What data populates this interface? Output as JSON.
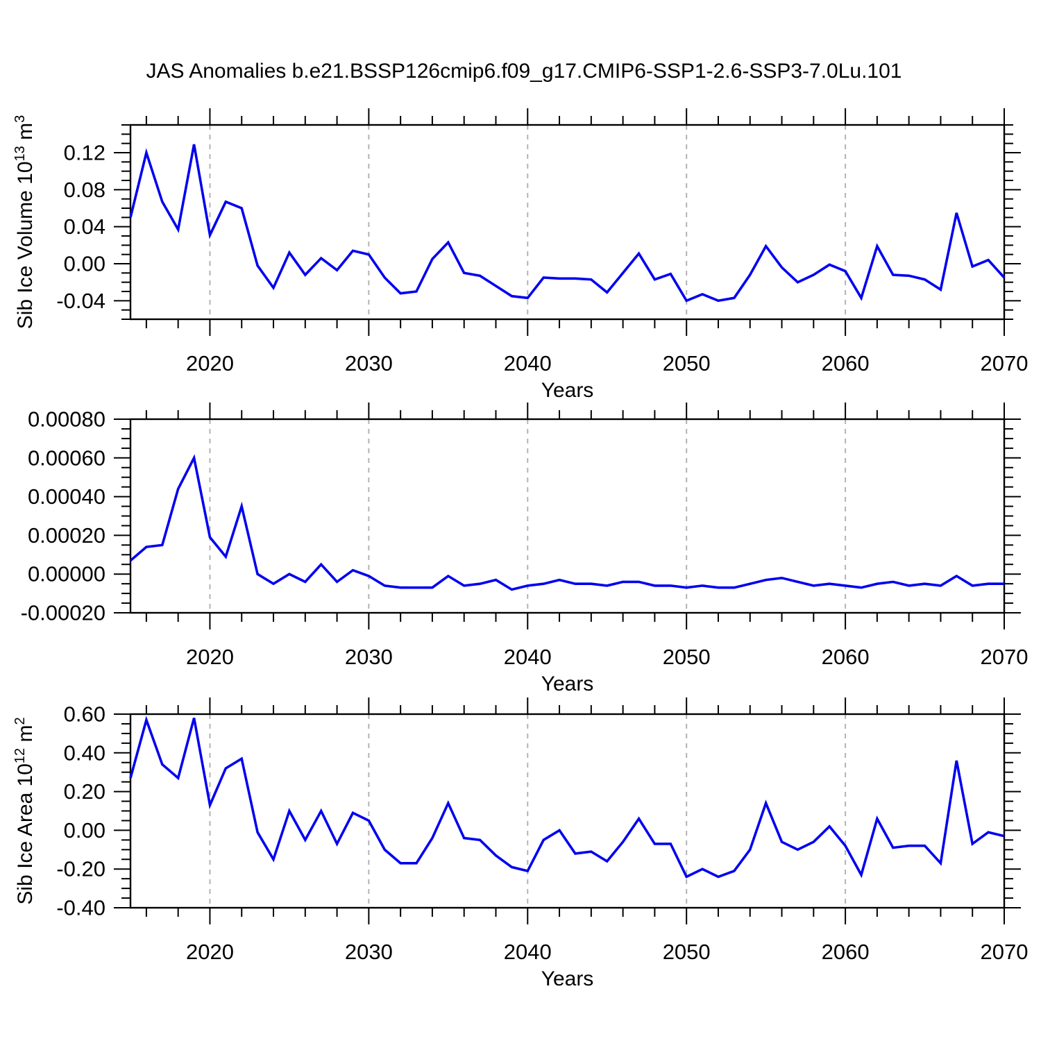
{
  "title": "JAS Anomalies b.e21.BSSP126cmip6.f09_g17.CMIP6-SSP1-2.6-SSP3-7.0Lu.101",
  "style": {
    "line_color": "#0101f0",
    "grid_color": "#b3b3b3",
    "frame_color": "#000000",
    "text_color": "#000000",
    "background": "#ffffff"
  },
  "x_axis": {
    "start": 2015,
    "end": 2070,
    "minor_step": 2,
    "major_step": 10,
    "title": "Years",
    "ticks": [
      {
        "v": 2020,
        "label": "2020"
      },
      {
        "v": 2030,
        "label": "2030"
      },
      {
        "v": 2040,
        "label": "2040"
      },
      {
        "v": 2050,
        "label": "2050"
      },
      {
        "v": 2060,
        "label": "2060"
      },
      {
        "v": 2070,
        "label": "2070"
      }
    ],
    "gridlines": [
      2020,
      2030,
      2040,
      2050,
      2060
    ]
  },
  "years": [
    2015,
    2016,
    2017,
    2018,
    2019,
    2020,
    2021,
    2022,
    2023,
    2024,
    2025,
    2026,
    2027,
    2028,
    2029,
    2030,
    2031,
    2032,
    2033,
    2034,
    2035,
    2036,
    2037,
    2038,
    2039,
    2040,
    2041,
    2042,
    2043,
    2044,
    2045,
    2046,
    2047,
    2048,
    2049,
    2050,
    2051,
    2052,
    2053,
    2054,
    2055,
    2056,
    2057,
    2058,
    2059,
    2060,
    2061,
    2062,
    2063,
    2064,
    2065,
    2066,
    2067,
    2068,
    2069,
    2070
  ],
  "chart_data": [
    {
      "type": "line",
      "name": "sib-ice-volume",
      "ylabel_text": "Sib Ice Volume 10^13 m^3",
      "ylabel_parts": [
        {
          "t": "Sib Ice Volume 10"
        },
        {
          "t": "13",
          "sup": true
        },
        {
          "t": " m"
        },
        {
          "t": "3",
          "sup": true
        }
      ],
      "xlabel": "Years",
      "ylim": [
        -0.06,
        0.15
      ],
      "y_major_step": 0.04,
      "y_minor_step": 0.01,
      "y_ticks": [
        {
          "v": -0.04,
          "label": "-0.04"
        },
        {
          "v": 0.0,
          "label": "0.00"
        },
        {
          "v": 0.04,
          "label": "0.04"
        },
        {
          "v": 0.08,
          "label": "0.08"
        },
        {
          "v": 0.12,
          "label": "0.12"
        }
      ],
      "values": [
        0.05,
        0.12,
        0.067,
        0.037,
        0.129,
        0.031,
        0.067,
        0.06,
        -0.002,
        -0.026,
        0.012,
        -0.012,
        0.006,
        -0.007,
        0.014,
        0.01,
        -0.015,
        -0.032,
        -0.03,
        0.005,
        0.023,
        -0.01,
        -0.013,
        -0.024,
        -0.035,
        -0.037,
        -0.015,
        -0.016,
        -0.016,
        -0.017,
        -0.031,
        -0.01,
        0.011,
        -0.017,
        -0.011,
        -0.04,
        -0.033,
        -0.04,
        -0.037,
        -0.012,
        0.019,
        -0.004,
        -0.02,
        -0.012,
        -0.001,
        -0.008,
        -0.037,
        0.019,
        -0.012,
        -0.013,
        -0.017,
        -0.028,
        0.055,
        -0.003,
        0.004,
        -0.015
      ]
    },
    {
      "type": "line",
      "name": "middle-series",
      "ylabel_text": "",
      "ylabel_parts": null,
      "xlabel": "Years",
      "ylim": [
        -0.0002,
        0.0008
      ],
      "y_major_step": 0.0002,
      "y_minor_step": 5e-05,
      "y_ticks": [
        {
          "v": -0.0002,
          "label": "-0.00020"
        },
        {
          "v": 0.0,
          "label": "0.00000"
        },
        {
          "v": 0.0002,
          "label": "0.00020"
        },
        {
          "v": 0.0004,
          "label": "0.00040"
        },
        {
          "v": 0.0006,
          "label": "0.00060"
        },
        {
          "v": 0.0008,
          "label": "0.00080"
        }
      ],
      "values": [
        7e-05,
        0.00014,
        0.00015,
        0.00044,
        0.0006,
        0.00019,
        9e-05,
        0.00035,
        0.0,
        -5e-05,
        0.0,
        -4e-05,
        5e-05,
        -4e-05,
        2e-05,
        -1e-05,
        -6e-05,
        -7e-05,
        -7e-05,
        -7e-05,
        -1e-05,
        -6e-05,
        -5e-05,
        -3e-05,
        -8e-05,
        -6e-05,
        -5e-05,
        -3e-05,
        -5e-05,
        -5e-05,
        -6e-05,
        -4e-05,
        -4e-05,
        -6e-05,
        -6e-05,
        -7e-05,
        -6e-05,
        -7e-05,
        -7e-05,
        -5e-05,
        -3e-05,
        -2e-05,
        -4e-05,
        -6e-05,
        -5e-05,
        -6e-05,
        -7e-05,
        -5e-05,
        -4e-05,
        -6e-05,
        -5e-05,
        -6e-05,
        -1e-05,
        -6e-05,
        -5e-05,
        -5e-05
      ]
    },
    {
      "type": "line",
      "name": "sib-ice-area",
      "ylabel_text": "Sib Ice Area 10^12 m^2",
      "ylabel_parts": [
        {
          "t": "Sib Ice Area 10"
        },
        {
          "t": "12",
          "sup": true
        },
        {
          "t": " m"
        },
        {
          "t": "2",
          "sup": true
        }
      ],
      "xlabel": "Years",
      "ylim": [
        -0.4,
        0.6
      ],
      "y_major_step": 0.2,
      "y_minor_step": 0.05,
      "y_ticks": [
        {
          "v": -0.4,
          "label": "-0.40"
        },
        {
          "v": -0.2,
          "label": "-0.20"
        },
        {
          "v": 0.0,
          "label": "0.00"
        },
        {
          "v": 0.2,
          "label": "0.20"
        },
        {
          "v": 0.4,
          "label": "0.40"
        },
        {
          "v": 0.6,
          "label": "0.60"
        }
      ],
      "values": [
        0.27,
        0.57,
        0.34,
        0.27,
        0.58,
        0.13,
        0.32,
        0.37,
        -0.01,
        -0.15,
        0.1,
        -0.05,
        0.1,
        -0.07,
        0.09,
        0.05,
        -0.1,
        -0.17,
        -0.17,
        -0.04,
        0.14,
        -0.04,
        -0.05,
        -0.13,
        -0.19,
        -0.21,
        -0.05,
        0.0,
        -0.12,
        -0.11,
        -0.16,
        -0.06,
        0.06,
        -0.07,
        -0.07,
        -0.24,
        -0.2,
        -0.24,
        -0.21,
        -0.1,
        0.14,
        -0.06,
        -0.1,
        -0.06,
        0.02,
        -0.08,
        -0.23,
        0.06,
        -0.09,
        -0.08,
        -0.08,
        -0.17,
        0.36,
        -0.07,
        -0.01,
        -0.03
      ]
    }
  ]
}
